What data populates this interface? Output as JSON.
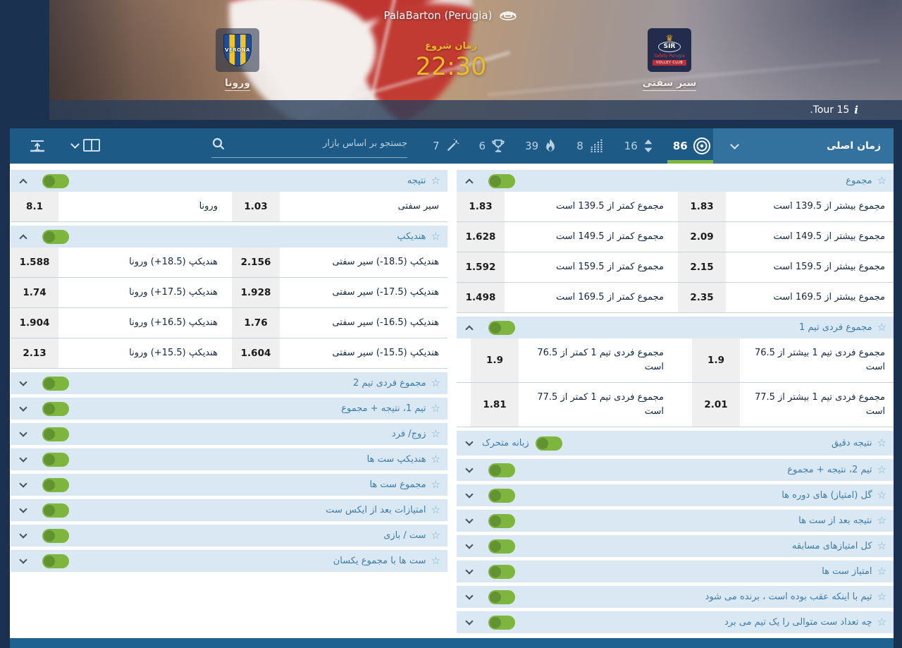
{
  "hero": {
    "venue": "PalaBarton (Perugia)",
    "start_time_label": "زمان شروع",
    "start_time": "22:30",
    "home_team": {
      "name": "ورونا",
      "logo_text": "VERONA"
    },
    "away_team": {
      "name": "سیر سفتی",
      "logo_line1": "SIR",
      "logo_line2": "Safety Perugia",
      "logo_line3": "VOLLEY CLUB"
    },
    "tour_label": ".Tour 15"
  },
  "toolbar": {
    "search_placeholder": "جستجو بر اساس بازار",
    "filters": [
      {
        "icon": "wand-icon",
        "count": "7",
        "active": false
      },
      {
        "icon": "trophy-icon",
        "count": "6",
        "active": false
      },
      {
        "icon": "fire-icon",
        "count": "39",
        "active": false
      },
      {
        "icon": "stats-icon",
        "count": "8",
        "active": false
      },
      {
        "icon": "sort-icon",
        "count": "16",
        "active": false
      },
      {
        "icon": "bullseye-icon",
        "count": "86",
        "active": true
      }
    ],
    "time_filter_label": "زمان اصلی"
  },
  "columns": {
    "right": [
      {
        "title": "مجموع",
        "expanded": true,
        "rows": [
          [
            {
              "label": "مجموع بیشتر از 139.5 است",
              "odds": "1.83"
            },
            {
              "label": "مجموع کمتر از 139.5 است",
              "odds": "1.83"
            }
          ],
          [
            {
              "label": "مجموع بیشتر از 149.5 است",
              "odds": "2.09"
            },
            {
              "label": "مجموع کمتر از 149.5 است",
              "odds": "1.628"
            }
          ],
          [
            {
              "label": "مجموع بیشتر از 159.5 است",
              "odds": "2.15"
            },
            {
              "label": "مجموع کمتر از 159.5 است",
              "odds": "1.592"
            }
          ],
          [
            {
              "label": "مجموع بیشتر از 169.5 است",
              "odds": "2.35"
            },
            {
              "label": "مجموع کمتر از 169.5 است",
              "odds": "1.498"
            }
          ]
        ]
      },
      {
        "title": "مجموع فردی تیم 1",
        "expanded": true,
        "tall": true,
        "rows": [
          [
            {
              "label": "مجموع فردی تیم 1 بیشتر از 76.5 است",
              "odds": "1.9"
            },
            {
              "label": "مجموع فردی تیم 1 کمتر از 76.5 است",
              "odds": "1.9"
            }
          ],
          [
            {
              "label": "مجموع فردی تیم 1 بیشتر از 77.5 است",
              "odds": "2.01"
            },
            {
              "label": "مجموع فردی تیم 1 کمتر از 77.5 است",
              "odds": "1.81"
            }
          ]
        ]
      },
      {
        "title": "نتیجه دقیق",
        "expanded": false,
        "toggle_label": "زبانه متحرک",
        "toggle_on": true
      },
      {
        "title": "تیم 2، نتیجه + مجموع",
        "expanded": false
      },
      {
        "title": "گل (امتیاز) های دوره ها",
        "expanded": false
      },
      {
        "title": "نتیجه بعد از ست ها",
        "expanded": false
      },
      {
        "title": "کل امتیازهای مسابقه",
        "expanded": false
      },
      {
        "title": "امتیاز ست ها",
        "expanded": false
      },
      {
        "title": "تیم با اینکه عقب بوده است ، برنده می شود",
        "expanded": false
      },
      {
        "title": "چه تعداد ست متوالی را یک تیم می برد",
        "expanded": false
      }
    ],
    "left": [
      {
        "title": "نتیجه",
        "expanded": true,
        "rows": [
          [
            {
              "label": "سیر سفتی",
              "odds": "1.03"
            },
            {
              "label": "ورونا",
              "odds": "8.1"
            }
          ]
        ]
      },
      {
        "title": "هندیکپ",
        "expanded": true,
        "rows": [
          [
            {
              "label": "هندیکپ ‎(-18.5)‎ سیر سفتی",
              "odds": "2.156"
            },
            {
              "label": "هندیکپ ‎(+18.5)‎ ورونا",
              "odds": "1.588"
            }
          ],
          [
            {
              "label": "هندیکپ ‎(-17.5)‎ سیر سفتی",
              "odds": "1.928"
            },
            {
              "label": "هندیکپ ‎(+17.5)‎ ورونا",
              "odds": "1.74"
            }
          ],
          [
            {
              "label": "هندیکپ ‎(-16.5)‎ سیر سفتی",
              "odds": "1.76"
            },
            {
              "label": "هندیکپ ‎(+16.5)‎ ورونا",
              "odds": "1.904"
            }
          ],
          [
            {
              "label": "هندیکپ ‎(-15.5)‎ سیر سفتی",
              "odds": "1.604"
            },
            {
              "label": "هندیکپ ‎(+15.5)‎ ورونا",
              "odds": "2.13"
            }
          ]
        ]
      },
      {
        "title": "مجموع فردی تیم 2",
        "expanded": false
      },
      {
        "title": "تیم 1، نتیجه + مجموع",
        "expanded": false
      },
      {
        "title": "زوج/ فرد",
        "expanded": false
      },
      {
        "title": "هندیکپ ست ها",
        "expanded": false
      },
      {
        "title": "مجموع ست ها",
        "expanded": false
      },
      {
        "title": "امتیازات بعد از ایکس ست",
        "expanded": false
      },
      {
        "title": "ست / بازی",
        "expanded": false
      },
      {
        "title": "ست ها با مجموع یکسان",
        "expanded": false
      }
    ]
  },
  "colors": {
    "page_bg": "#1a3150",
    "toolbar_blue": "#1d5a85",
    "dropdown_blue": "#33719f",
    "accent_green": "#7db53f",
    "gold": "#f0ba20",
    "section_header_bg": "#d9e8f2",
    "section_title": "#3d7dab",
    "odds_bg": "#efefef"
  }
}
